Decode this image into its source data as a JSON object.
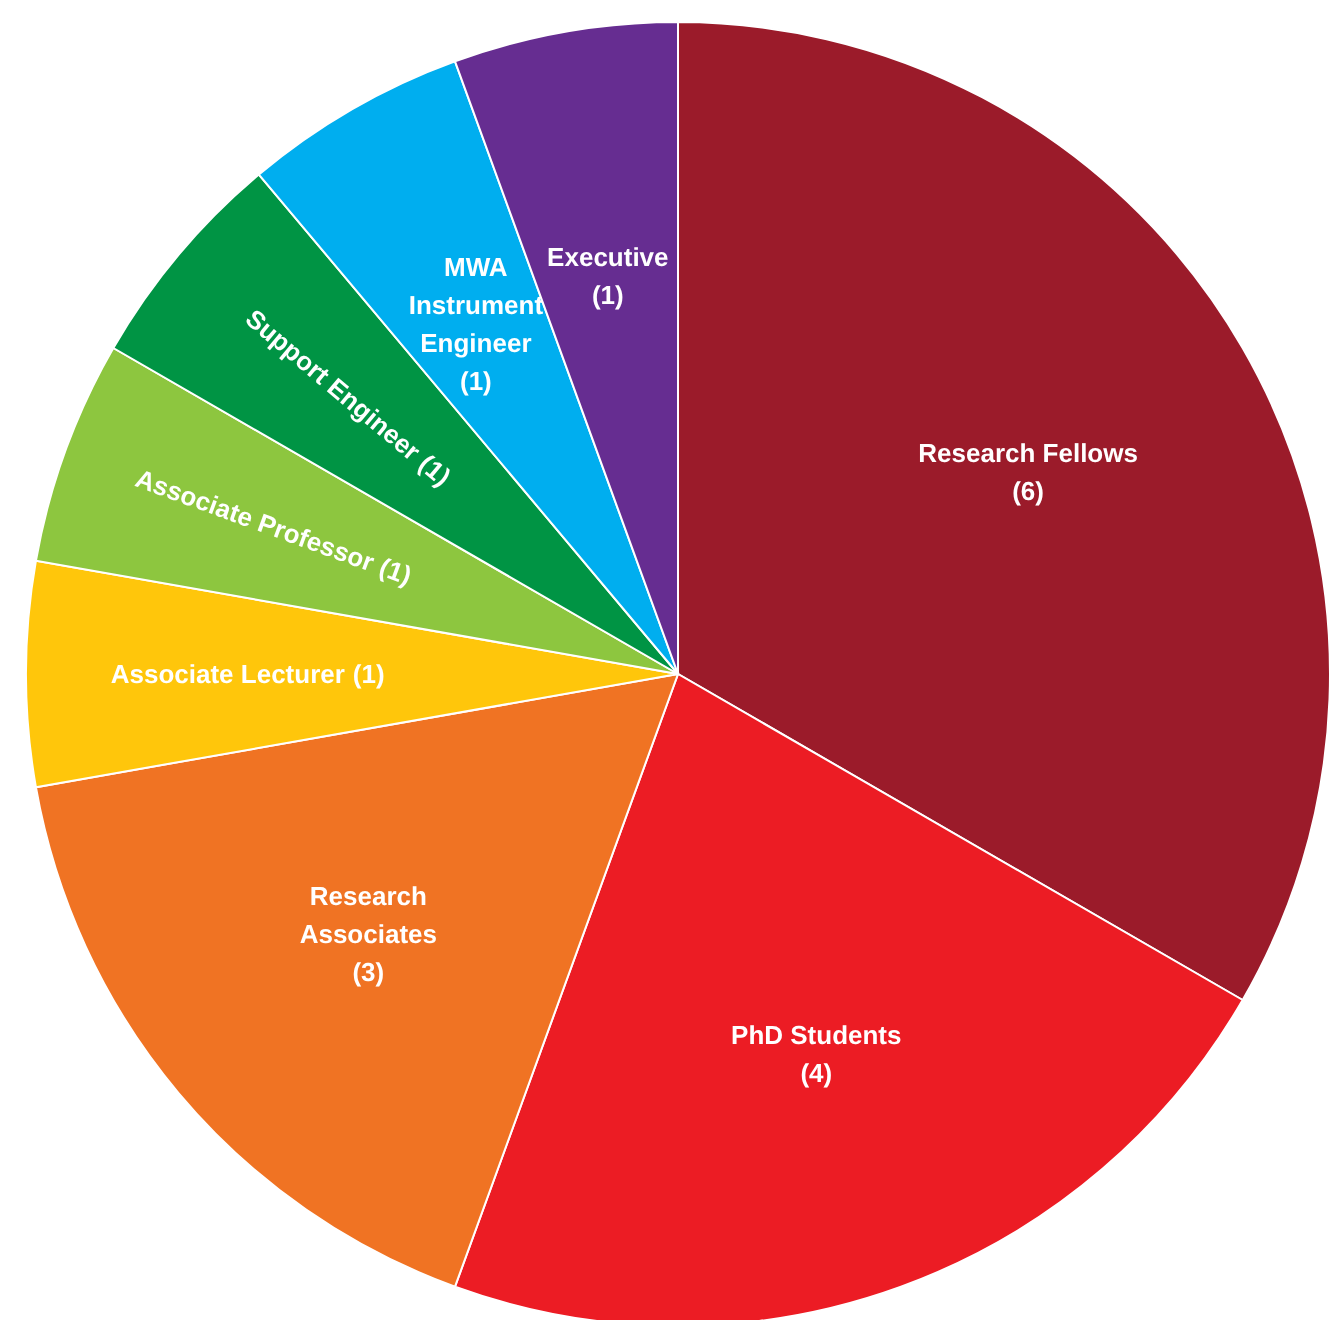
{
  "chart_data": {
    "type": "pie",
    "categories": [
      "Research Fellows",
      "PhD Students",
      "Research Associates",
      "Associate Lecturer",
      "Associate Professor",
      "Support Engineer",
      "MWA Instrument Engineer",
      "Executive"
    ],
    "values": [
      6,
      4,
      3,
      1,
      1,
      1,
      1,
      1
    ],
    "colors": [
      "#9b1b2a",
      "#ec1c24",
      "#f07323",
      "#ffc60b",
      "#8dc63f",
      "#009444",
      "#00aeef",
      "#662d91"
    ],
    "value_labels": [
      "(6)",
      "(4)",
      "(3)",
      "(1)",
      "(1)",
      "(1)",
      "(1)",
      "(1)"
    ]
  }
}
